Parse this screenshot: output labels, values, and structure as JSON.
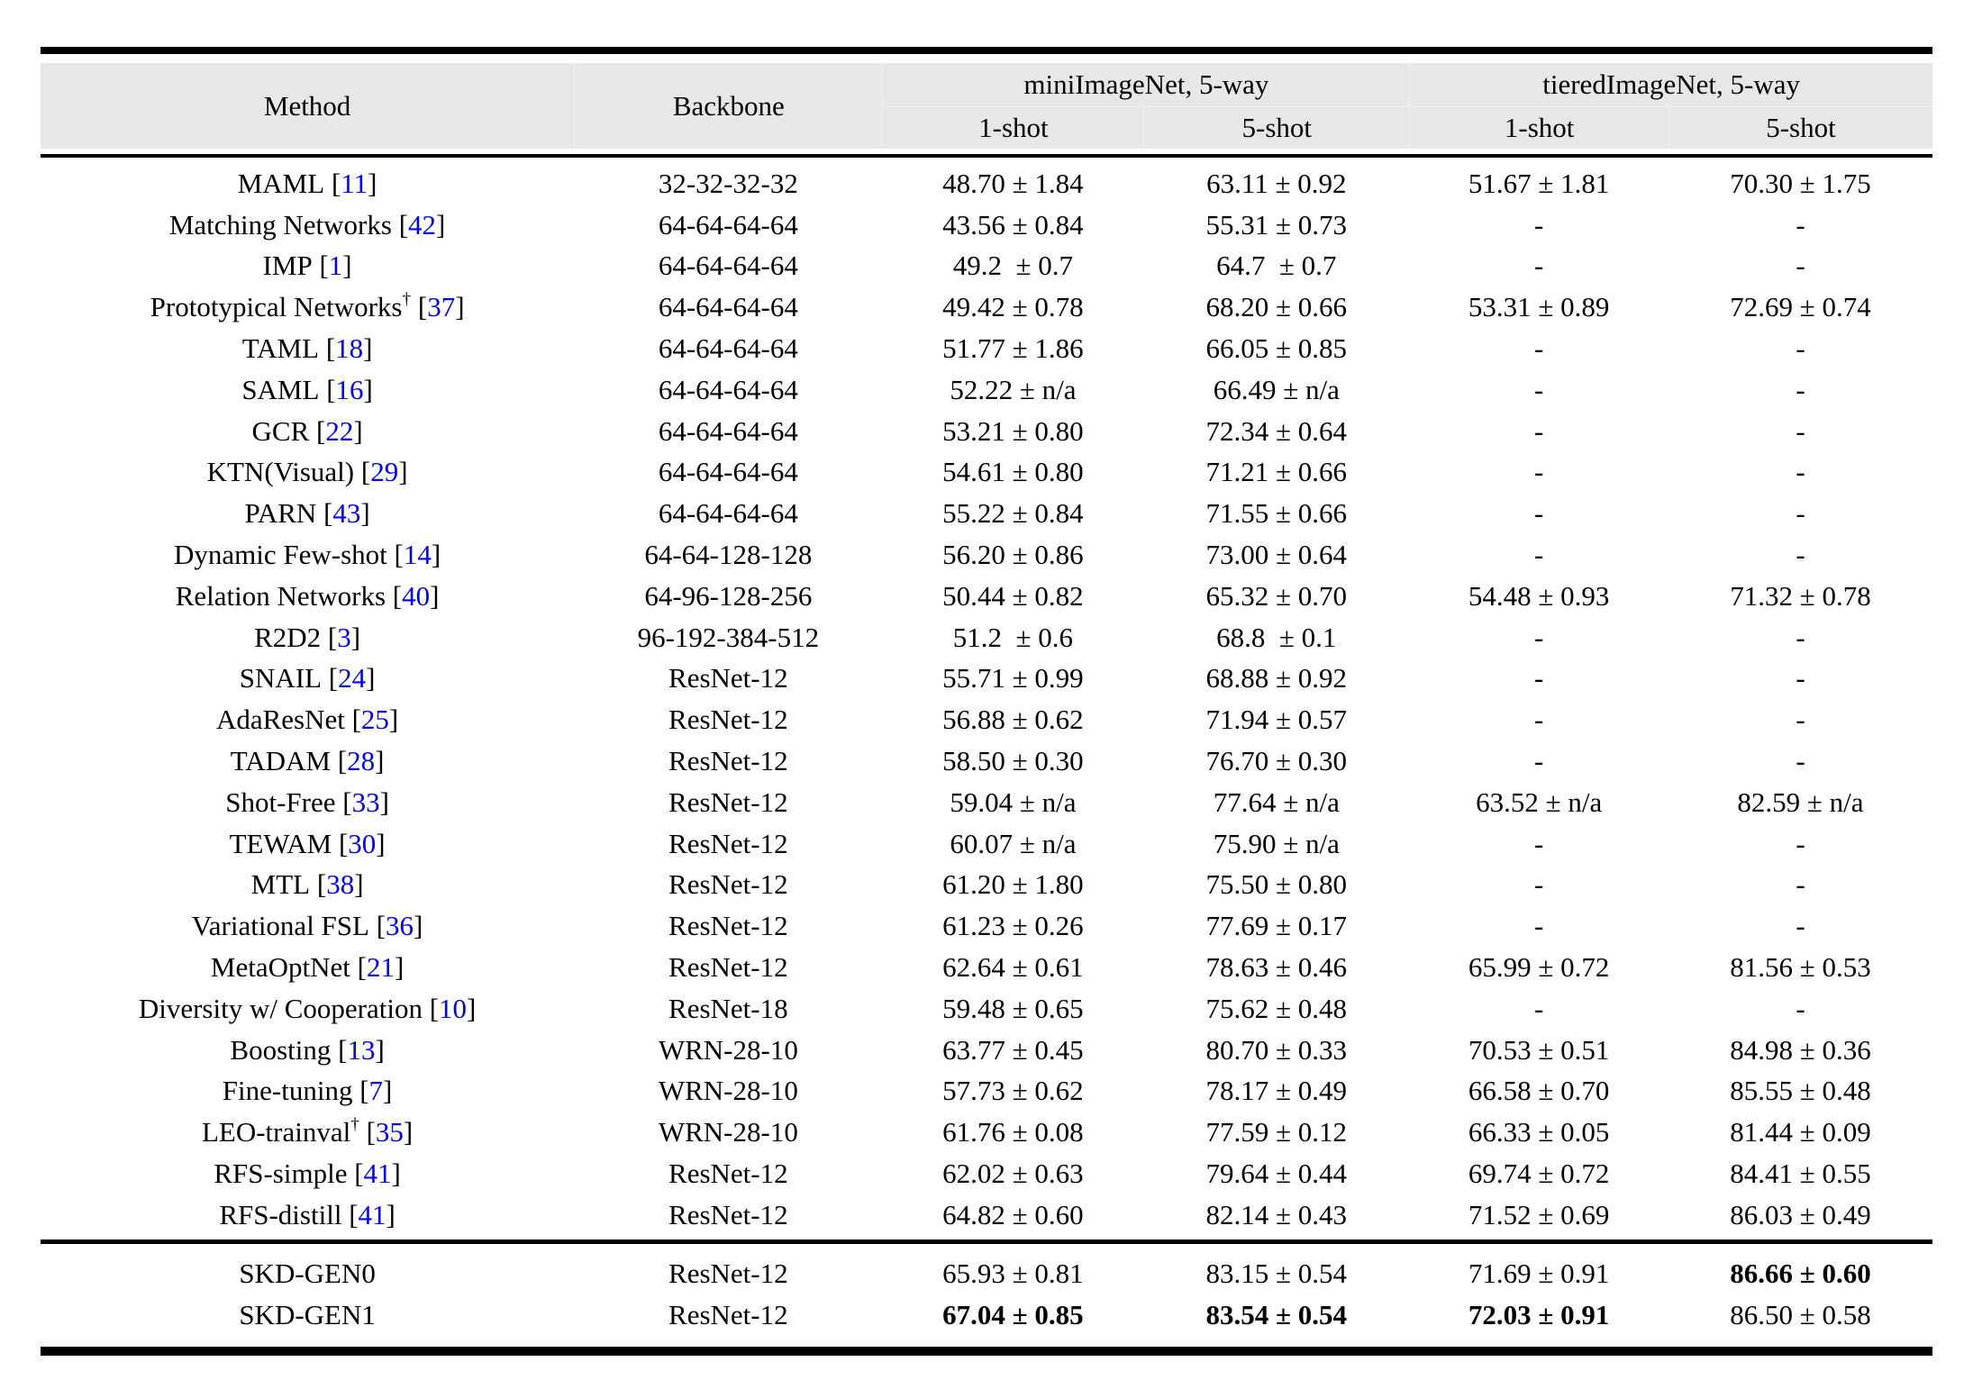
{
  "colors": {
    "citation_blue": "#0000FF",
    "header_bg": "#E7E7E7"
  },
  "header": {
    "method": "Method",
    "backbone": "Backbone",
    "group_mini": "miniImageNet, 5-way",
    "group_tiered": "tieredImageNet, 5-way",
    "shot_labels": [
      "1-shot",
      "5-shot",
      "1-shot",
      "5-shot"
    ]
  },
  "rows": [
    {
      "method": "MAML",
      "ref": "11",
      "backbone": "32-32-32-32",
      "values": [
        "48.70 ± 1.84",
        "63.11 ± 0.92",
        "51.67 ± 1.81",
        "70.30 ± 1.75"
      ]
    },
    {
      "method": "Matching Networks",
      "ref": "42",
      "backbone": "64-64-64-64",
      "values": [
        "43.56 ± 0.84",
        "55.31 ± 0.73",
        "-",
        "-"
      ]
    },
    {
      "method": "IMP",
      "ref": "1",
      "backbone": "64-64-64-64",
      "values": [
        "49.2  ± 0.7",
        "64.7  ± 0.7",
        "-",
        "-"
      ]
    },
    {
      "method": "Prototypical Networks",
      "dagger": "†",
      "ref": "37",
      "backbone": "64-64-64-64",
      "values": [
        "49.42 ± 0.78",
        "68.20 ± 0.66",
        "53.31 ± 0.89",
        "72.69 ± 0.74"
      ]
    },
    {
      "method": "TAML",
      "ref": "18",
      "backbone": "64-64-64-64",
      "values": [
        "51.77 ± 1.86",
        "66.05 ± 0.85",
        "-",
        "-"
      ]
    },
    {
      "method": "SAML",
      "ref": "16",
      "backbone": "64-64-64-64",
      "values": [
        "52.22 ± n/a",
        "66.49 ± n/a",
        "-",
        "-"
      ]
    },
    {
      "method": "GCR",
      "ref": "22",
      "backbone": "64-64-64-64",
      "values": [
        "53.21 ± 0.80",
        "72.34 ± 0.64",
        "-",
        "-"
      ]
    },
    {
      "method": "KTN(Visual)",
      "ref": "29",
      "backbone": "64-64-64-64",
      "values": [
        "54.61 ± 0.80",
        "71.21 ± 0.66",
        "-",
        "-"
      ]
    },
    {
      "method": "PARN",
      "ref": "43",
      "backbone": "64-64-64-64",
      "values": [
        "55.22 ± 0.84",
        "71.55 ± 0.66",
        "-",
        "-"
      ]
    },
    {
      "method": "Dynamic Few-shot",
      "ref": "14",
      "backbone": "64-64-128-128",
      "values": [
        "56.20 ± 0.86",
        "73.00 ± 0.64",
        "-",
        "-"
      ]
    },
    {
      "method": "Relation Networks",
      "ref": "40",
      "backbone": "64-96-128-256",
      "values": [
        "50.44 ± 0.82",
        "65.32 ± 0.70",
        "54.48 ± 0.93",
        "71.32 ± 0.78"
      ]
    },
    {
      "method": "R2D2",
      "ref": "3",
      "backbone": "96-192-384-512",
      "values": [
        "51.2  ± 0.6",
        "68.8  ± 0.1",
        "-",
        "-"
      ]
    },
    {
      "method": "SNAIL",
      "ref": "24",
      "backbone": "ResNet-12",
      "values": [
        "55.71 ± 0.99",
        "68.88 ± 0.92",
        "-",
        "-"
      ]
    },
    {
      "method": "AdaResNet",
      "ref": "25",
      "backbone": "ResNet-12",
      "values": [
        "56.88 ± 0.62",
        "71.94 ± 0.57",
        "-",
        "-"
      ]
    },
    {
      "method": "TADAM",
      "ref": "28",
      "backbone": "ResNet-12",
      "values": [
        "58.50 ± 0.30",
        "76.70 ± 0.30",
        "-",
        "-"
      ]
    },
    {
      "method": "Shot-Free",
      "ref": "33",
      "backbone": "ResNet-12",
      "values": [
        "59.04 ± n/a",
        "77.64 ± n/a",
        "63.52 ± n/a",
        "82.59 ± n/a"
      ]
    },
    {
      "method": "TEWAM",
      "ref": "30",
      "backbone": "ResNet-12",
      "values": [
        "60.07 ± n/a",
        "75.90 ± n/a",
        "-",
        "-"
      ]
    },
    {
      "method": "MTL",
      "ref": "38",
      "backbone": "ResNet-12",
      "values": [
        "61.20 ± 1.80",
        "75.50 ± 0.80",
        "-",
        "-"
      ]
    },
    {
      "method": "Variational FSL",
      "ref": "36",
      "backbone": "ResNet-12",
      "values": [
        "61.23 ± 0.26",
        "77.69 ± 0.17",
        "-",
        "-"
      ]
    },
    {
      "method": "MetaOptNet",
      "ref": "21",
      "backbone": "ResNet-12",
      "values": [
        "62.64 ± 0.61",
        "78.63 ± 0.46",
        "65.99 ± 0.72",
        "81.56 ± 0.53"
      ]
    },
    {
      "method": "Diversity w/ Cooperation",
      "ref": "10",
      "backbone": "ResNet-18",
      "values": [
        "59.48 ± 0.65",
        "75.62 ± 0.48",
        "-",
        "-"
      ]
    },
    {
      "method": "Boosting",
      "ref": "13",
      "backbone": "WRN-28-10",
      "values": [
        "63.77 ± 0.45",
        "80.70 ± 0.33",
        "70.53 ± 0.51",
        "84.98 ± 0.36"
      ]
    },
    {
      "method": "Fine-tuning",
      "ref": "7",
      "backbone": "WRN-28-10",
      "values": [
        "57.73 ± 0.62",
        "78.17 ± 0.49",
        "66.58 ± 0.70",
        "85.55 ± 0.48"
      ]
    },
    {
      "method": "LEO-trainval",
      "dagger": "†",
      "ref": "35",
      "backbone": "WRN-28-10",
      "values": [
        "61.76 ± 0.08",
        "77.59 ± 0.12",
        "66.33 ± 0.05",
        "81.44 ± 0.09"
      ]
    },
    {
      "method": "RFS-simple",
      "ref": "41",
      "backbone": "ResNet-12",
      "values": [
        "62.02 ± 0.63",
        "79.64 ± 0.44",
        "69.74 ± 0.72",
        "84.41 ± 0.55"
      ]
    },
    {
      "method": "RFS-distill",
      "ref": "41",
      "backbone": "ResNet-12",
      "values": [
        "64.82 ± 0.60",
        "82.14 ± 0.43",
        "71.52 ± 0.69",
        "86.03 ± 0.49"
      ]
    }
  ],
  "footer_rows": [
    {
      "method": "SKD-GEN0",
      "backbone": "ResNet-12",
      "values": [
        "65.93 ± 0.81",
        "83.15 ± 0.54",
        "71.69 ± 0.91",
        "86.66 ± 0.60"
      ],
      "bold": [
        false,
        false,
        false,
        true
      ]
    },
    {
      "method": "SKD-GEN1",
      "backbone": "ResNet-12",
      "values": [
        "67.04 ± 0.85",
        "83.54 ± 0.54",
        "72.03 ± 0.91",
        "86.50 ± 0.58"
      ],
      "bold": [
        true,
        true,
        true,
        false
      ]
    }
  ]
}
